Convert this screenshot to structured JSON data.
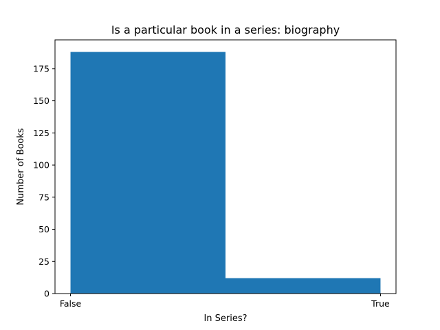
{
  "chart_data": {
    "type": "bar",
    "title": "Is a particular book in a series: biography",
    "xlabel": "In Series?",
    "ylabel": "Number of Books",
    "x_tick_labels": [
      "False",
      "True"
    ],
    "bins": [
      {
        "from": 0,
        "to": 0.5,
        "value": 188
      },
      {
        "from": 0.5,
        "to": 1,
        "value": 12
      }
    ],
    "xlim": [
      -0.05,
      1.05
    ],
    "ylim": [
      0,
      197.4
    ],
    "y_ticks": [
      0,
      25,
      50,
      75,
      100,
      125,
      150,
      175
    ],
    "bar_color": "#1f77b4",
    "grid": false,
    "legend": "none"
  }
}
